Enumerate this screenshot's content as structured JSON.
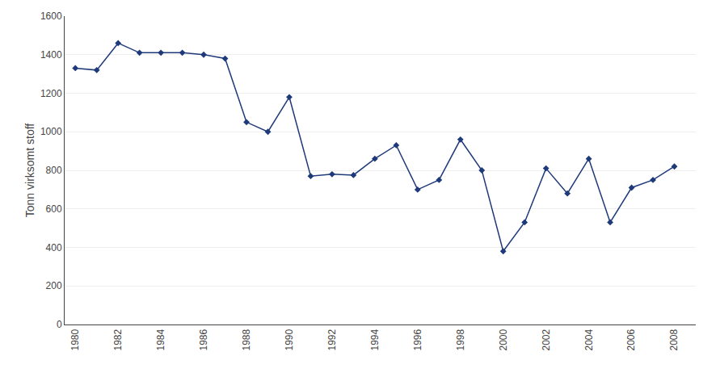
{
  "chart_data": {
    "type": "line",
    "x": [
      1980,
      1981,
      1982,
      1983,
      1984,
      1985,
      1986,
      1987,
      1988,
      1989,
      1990,
      1991,
      1992,
      1993,
      1994,
      1995,
      1996,
      1997,
      1998,
      1999,
      2000,
      2001,
      2002,
      2003,
      2004,
      2005,
      2006,
      2007,
      2008
    ],
    "values": [
      1330,
      1320,
      1460,
      1410,
      1410,
      1410,
      1400,
      1380,
      1050,
      1000,
      1180,
      770,
      780,
      775,
      860,
      930,
      700,
      750,
      960,
      800,
      380,
      530,
      810,
      680,
      860,
      530,
      710,
      750,
      820
    ],
    "color": "#1F3A7A",
    "marker": "diamond",
    "ylabel": "Tonn virksomt stoff",
    "xlim": [
      1979.5,
      2009.0
    ],
    "xticks": [
      1980,
      1982,
      1984,
      1986,
      1988,
      1990,
      1992,
      1994,
      1996,
      1998,
      2000,
      2002,
      2004,
      2006,
      2008
    ],
    "ylim": [
      0,
      1600
    ],
    "yticks": [
      0,
      200,
      400,
      600,
      800,
      1000,
      1200,
      1400,
      1600
    ],
    "grid": true
  }
}
